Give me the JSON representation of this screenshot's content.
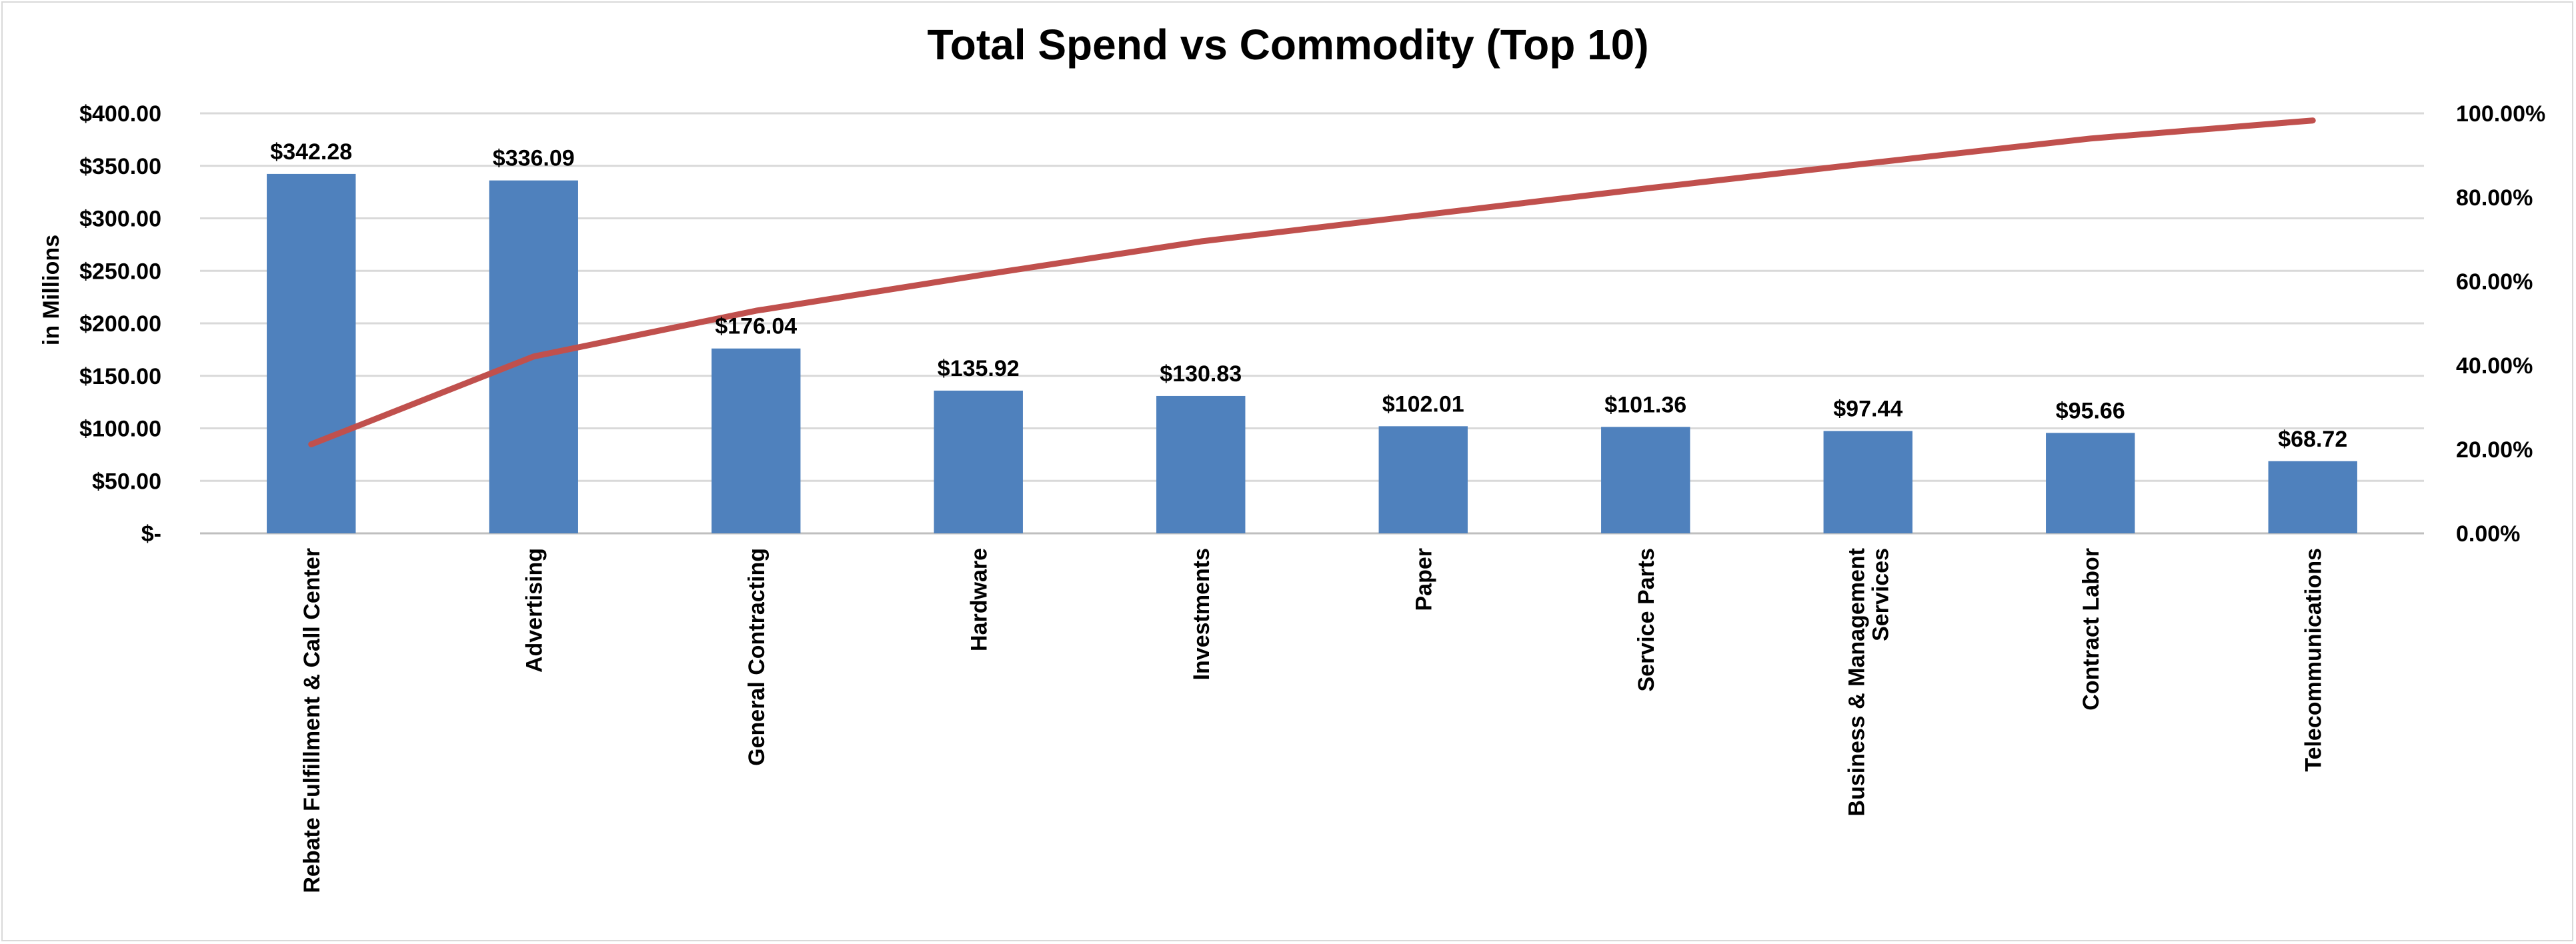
{
  "chart_data": {
    "type": "bar",
    "title": "Total Spend vs Commodity (Top 10)",
    "ylabel": "in Millions",
    "xlabel": "",
    "categories": [
      "Rebate Fulfillment & Call Center",
      "Advertising",
      "General Contracting",
      "Hardware",
      "Investments",
      "Paper",
      "Service Parts",
      "Business & Management Services",
      "Contract Labor",
      "Telecommunications"
    ],
    "series": [
      {
        "type": "bar",
        "axis": "left",
        "values": [
          342.28,
          336.09,
          176.04,
          135.92,
          130.83,
          102.01,
          101.36,
          97.44,
          95.66,
          68.72
        ]
      },
      {
        "type": "line",
        "axis": "right",
        "values": [
          21.2,
          42.1,
          53.0,
          61.4,
          69.5,
          75.8,
          82.1,
          88.1,
          94.0,
          98.3
        ]
      }
    ],
    "data_labels": [
      "$342.28",
      "$336.09",
      "$176.04",
      "$135.92",
      "$130.83",
      "$102.01",
      "$101.36",
      "$97.44",
      "$95.66",
      "$68.72"
    ],
    "ylim": [
      0,
      400
    ],
    "y2lim": [
      0,
      100
    ],
    "yticks": [
      0,
      50,
      100,
      150,
      200,
      250,
      300,
      350,
      400
    ],
    "ytick_labels": [
      "$-",
      "$50.00",
      "$100.00",
      "$150.00",
      "$200.00",
      "$250.00",
      "$300.00",
      "$350.00",
      "$400.00"
    ],
    "y2ticks": [
      0,
      20,
      40,
      60,
      80,
      100
    ],
    "y2tick_labels": [
      "0.00%",
      "20.00%",
      "40.00%",
      "60.00%",
      "80.00%",
      "100.00%"
    ],
    "grid": true,
    "legend": "none",
    "colors": {
      "bar": "#4f81bd",
      "line": "#c0504d",
      "grid": "#d9d9d9",
      "axis": "#bfbfbf"
    }
  }
}
